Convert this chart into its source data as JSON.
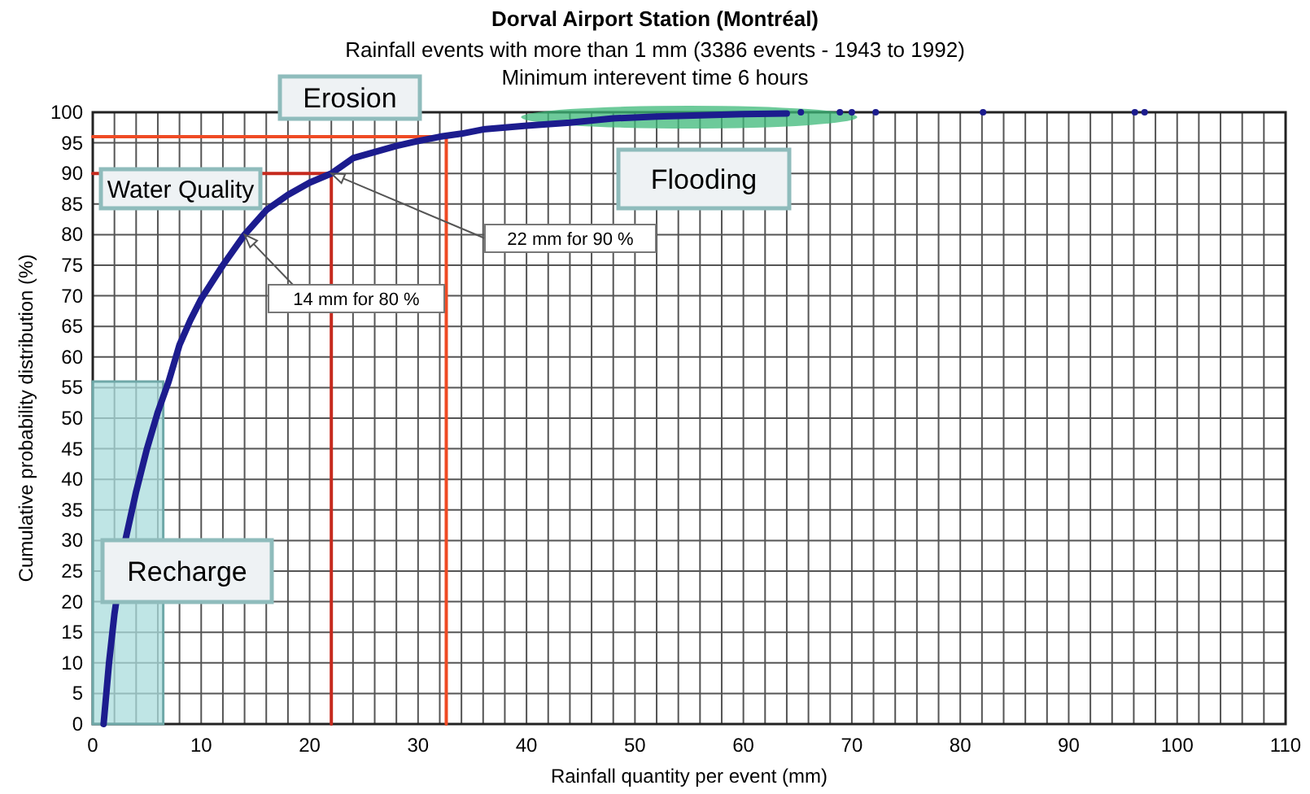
{
  "chart_data": {
    "type": "line",
    "title": "Dorval Airport Station (Montréal)",
    "subtitle": "Rainfall events with more than 1 mm (3386 events - 1943 to 1992)\nMinimum interevent time 6 hours",
    "xlabel": "Rainfall quantity per event (mm)",
    "ylabel": "Cumulative probability distribution (%)",
    "xlim": [
      0,
      110
    ],
    "ylim": [
      0,
      100
    ],
    "xticks": [
      0,
      {
        "value": 2,
        "label": null
      },
      {
        "value": 4,
        "label": null
      },
      {
        "value": 6,
        "label": null
      },
      {
        "value": 8,
        "label": null
      },
      10,
      {
        "value": 12,
        "label": null
      },
      {
        "value": 14,
        "label": null
      },
      {
        "value": 16,
        "label": null
      },
      {
        "value": 18,
        "label": null
      },
      20,
      {
        "value": 22,
        "label": null
      },
      {
        "value": 24,
        "label": null
      },
      {
        "value": 26,
        "label": null
      },
      {
        "value": 28,
        "label": null
      },
      30,
      {
        "value": 32,
        "label": null
      },
      {
        "value": 34,
        "label": null
      },
      {
        "value": 36,
        "label": null
      },
      {
        "value": 38,
        "label": null
      },
      40,
      {
        "value": 42,
        "label": null
      },
      {
        "value": 44,
        "label": null
      },
      {
        "value": 46,
        "label": null
      },
      {
        "value": 48,
        "label": null
      },
      50,
      {
        "value": 52,
        "label": null
      },
      {
        "value": 54,
        "label": null
      },
      {
        "value": 56,
        "label": null
      },
      {
        "value": 58,
        "label": null
      },
      60,
      {
        "value": 62,
        "label": null
      },
      {
        "value": 64,
        "label": null
      },
      {
        "value": 66,
        "label": null
      },
      {
        "value": 68,
        "label": null
      },
      70,
      {
        "value": 72,
        "label": null
      },
      {
        "value": 74,
        "label": null
      },
      {
        "value": 76,
        "label": null
      },
      {
        "value": 78,
        "label": null
      },
      80,
      {
        "value": 82,
        "label": null
      },
      {
        "value": 84,
        "label": null
      },
      {
        "value": 86,
        "label": null
      },
      {
        "value": 88,
        "label": null
      },
      90,
      {
        "value": 92,
        "label": null
      },
      {
        "value": 94,
        "label": null
      },
      {
        "value": 96,
        "label": null
      },
      {
        "value": 98,
        "label": null
      },
      100,
      {
        "value": 102,
        "label": null
      },
      {
        "value": 104,
        "label": null
      },
      {
        "value": 106,
        "label": null
      },
      {
        "value": 108,
        "label": null
      },
      110
    ],
    "yticks": [
      0,
      5,
      10,
      15,
      20,
      25,
      30,
      35,
      40,
      45,
      50,
      55,
      60,
      65,
      70,
      75,
      80,
      85,
      90,
      95,
      100
    ],
    "grid": true,
    "series": [
      {
        "type": "area",
        "color": "#a9dcdc",
        "x": [
          0,
          6.5
        ],
        "values": [
          56,
          56
        ]
      },
      {
        "type": "line",
        "color": "#c62a1e",
        "x": [
          0,
          22,
          22
        ],
        "values": [
          90,
          90,
          0
        ]
      },
      {
        "type": "line",
        "color": "#ef4a24",
        "x": [
          0,
          32.6,
          32.6
        ],
        "values": [
          96,
          96,
          0
        ]
      },
      {
        "color": "#1c1c8e",
        "x": [
          1,
          1.5,
          2,
          3,
          4,
          5,
          6,
          7,
          8,
          9,
          10,
          12,
          14,
          16,
          18,
          20,
          22,
          24,
          26,
          28,
          30,
          32,
          34,
          36,
          40,
          44,
          48,
          52,
          56,
          60,
          64
        ],
        "values": [
          0,
          10,
          18,
          30,
          38,
          45,
          51,
          56,
          62,
          66,
          69.5,
          75,
          80,
          84,
          86.5,
          88.5,
          90,
          92.5,
          93.5,
          94.5,
          95.3,
          96,
          96.5,
          97.2,
          97.8,
          98.3,
          99,
          99.3,
          99.5,
          99.7,
          99.8
        ]
      },
      {
        "type": "scatter",
        "color": "#1c1c8e",
        "marker": "circle",
        "x": [
          65.3,
          68.9,
          70,
          72.2,
          82.1,
          96.1,
          97
        ],
        "values": [
          100,
          100,
          100,
          100,
          100,
          100,
          100
        ]
      }
    ],
    "annotations": [
      "Erosion",
      "Water Quality",
      "Flooding",
      "Recharge",
      {
        "text": "14 mm for 80 %",
        "x": 14,
        "y": 80
      },
      {
        "text": "22 mm for 90 %",
        "x": 22,
        "y": 90
      }
    ]
  }
}
